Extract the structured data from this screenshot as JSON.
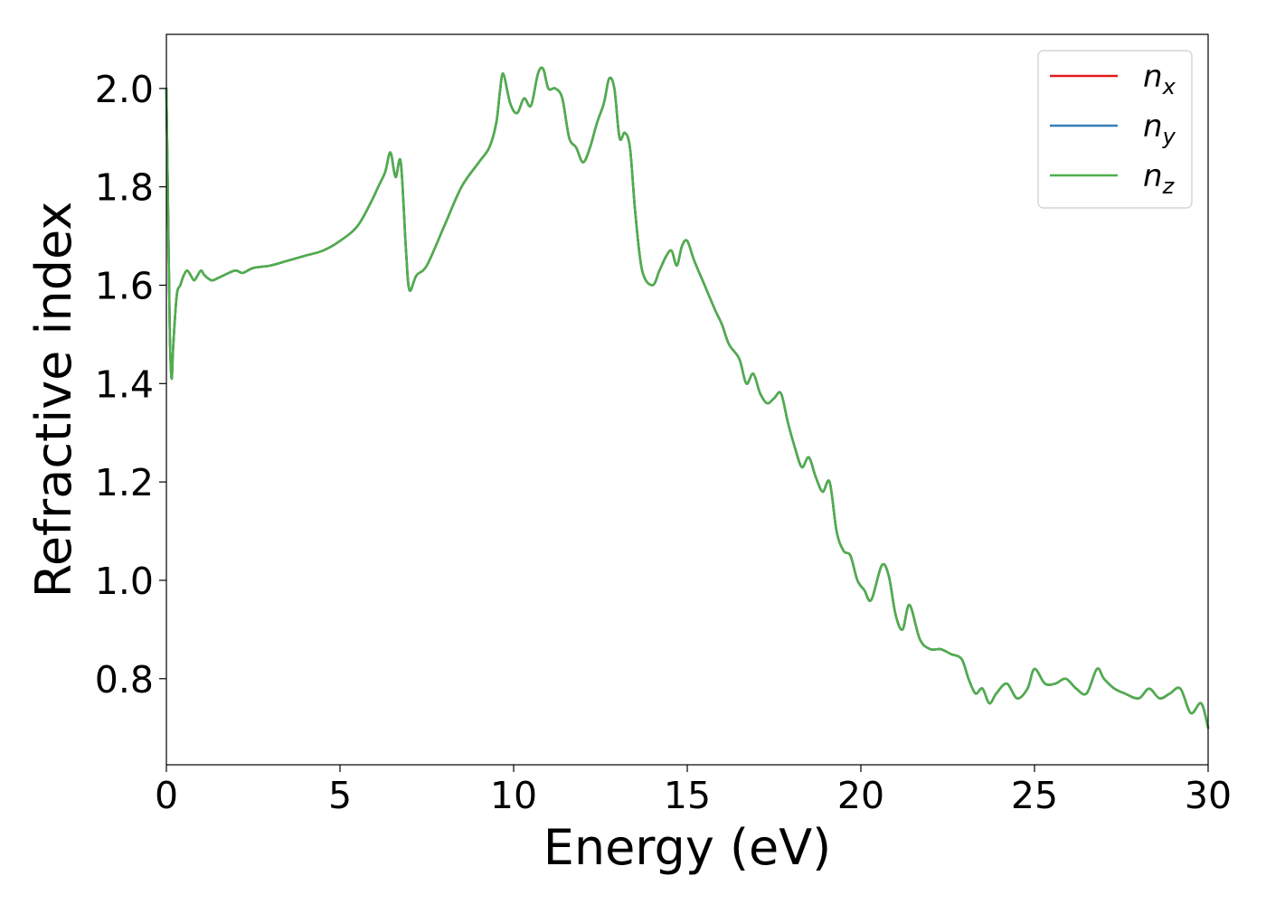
{
  "chart_data": {
    "type": "line",
    "title": "",
    "xlabel": "Energy (eV)",
    "ylabel": "Refractive index",
    "xlim": [
      0,
      30
    ],
    "ylim": [
      0.625,
      2.11
    ],
    "xticks": [
      0,
      5,
      10,
      15,
      20,
      25,
      30
    ],
    "xtick_labels": [
      "0",
      "5",
      "10",
      "15",
      "20",
      "25",
      "30"
    ],
    "yticks": [
      0.8,
      1.0,
      1.2,
      1.4,
      1.6,
      1.8,
      2.0
    ],
    "ytick_labels": [
      "0.8",
      "1.0",
      "1.2",
      "1.4",
      "1.6",
      "1.8",
      "2.0"
    ],
    "grid": false,
    "legend_position": "top-right",
    "colors": {
      "n_x": "#e41a1c",
      "n_y": "#377eb8",
      "n_z": "#4daf4a"
    },
    "legend": [
      {
        "base": "n",
        "sub": "x",
        "color": "#e41a1c"
      },
      {
        "base": "n",
        "sub": "y",
        "color": "#377eb8"
      },
      {
        "base": "n",
        "sub": "z",
        "color": "#4daf4a"
      }
    ],
    "series": [
      {
        "legend_index": 0,
        "color": "#e41a1c",
        "x": [
          0,
          0.05,
          0.1,
          0.15,
          0.2,
          0.3,
          0.4,
          0.5,
          0.6,
          0.7,
          0.8,
          0.9,
          1.0,
          1.1,
          1.3,
          1.5,
          1.8,
          2.0,
          2.2,
          2.5,
          3.0,
          3.5,
          4.0,
          4.5,
          5.0,
          5.5,
          5.9,
          6.1,
          6.3,
          6.45,
          6.6,
          6.75,
          6.9,
          7.0,
          7.2,
          7.5,
          8.0,
          8.5,
          9.0,
          9.3,
          9.5,
          9.6,
          9.7,
          9.9,
          10.1,
          10.3,
          10.5,
          10.7,
          10.85,
          11.0,
          11.2,
          11.4,
          11.6,
          11.8,
          12.0,
          12.2,
          12.4,
          12.6,
          12.75,
          12.9,
          13.05,
          13.2,
          13.35,
          13.5,
          13.7,
          14.0,
          14.2,
          14.4,
          14.55,
          14.7,
          14.85,
          15.0,
          15.2,
          15.5,
          15.8,
          16.0,
          16.2,
          16.5,
          16.7,
          16.9,
          17.1,
          17.3,
          17.5,
          17.7,
          17.9,
          18.1,
          18.3,
          18.5,
          18.7,
          18.9,
          19.1,
          19.3,
          19.5,
          19.7,
          19.9,
          20.1,
          20.3,
          20.6,
          20.8,
          21.0,
          21.2,
          21.4,
          21.7,
          22.0,
          22.3,
          22.6,
          22.9,
          23.1,
          23.3,
          23.5,
          23.7,
          23.9,
          24.2,
          24.5,
          24.8,
          25.0,
          25.3,
          25.6,
          25.9,
          26.2,
          26.5,
          26.8,
          27.0,
          27.3,
          27.6,
          28.0,
          28.3,
          28.6,
          28.9,
          29.2,
          29.5,
          29.8,
          30.0
        ],
        "y": [
          2.0,
          1.75,
          1.5,
          1.41,
          1.48,
          1.58,
          1.6,
          1.62,
          1.63,
          1.62,
          1.61,
          1.62,
          1.63,
          1.62,
          1.61,
          1.615,
          1.625,
          1.63,
          1.625,
          1.635,
          1.64,
          1.65,
          1.66,
          1.67,
          1.69,
          1.72,
          1.77,
          1.8,
          1.83,
          1.87,
          1.82,
          1.85,
          1.67,
          1.59,
          1.62,
          1.64,
          1.72,
          1.8,
          1.85,
          1.88,
          1.93,
          1.99,
          2.03,
          1.97,
          1.95,
          1.98,
          1.965,
          2.03,
          2.04,
          2.0,
          2.0,
          1.98,
          1.9,
          1.88,
          1.85,
          1.88,
          1.93,
          1.97,
          2.02,
          2.0,
          1.9,
          1.91,
          1.88,
          1.75,
          1.63,
          1.6,
          1.63,
          1.66,
          1.67,
          1.64,
          1.68,
          1.69,
          1.65,
          1.6,
          1.55,
          1.52,
          1.48,
          1.45,
          1.4,
          1.42,
          1.38,
          1.36,
          1.37,
          1.38,
          1.32,
          1.27,
          1.23,
          1.25,
          1.21,
          1.18,
          1.2,
          1.1,
          1.06,
          1.05,
          1.0,
          0.98,
          0.96,
          1.03,
          1.01,
          0.93,
          0.9,
          0.95,
          0.88,
          0.86,
          0.86,
          0.85,
          0.84,
          0.8,
          0.77,
          0.78,
          0.75,
          0.77,
          0.79,
          0.76,
          0.78,
          0.82,
          0.79,
          0.79,
          0.8,
          0.78,
          0.77,
          0.82,
          0.8,
          0.78,
          0.77,
          0.76,
          0.78,
          0.76,
          0.77,
          0.78,
          0.73,
          0.75,
          0.7
        ]
      },
      {
        "legend_index": 1,
        "color": "#377eb8",
        "x": [
          0,
          0.05,
          0.1,
          0.15,
          0.2,
          0.3,
          0.4,
          0.5,
          0.6,
          0.7,
          0.8,
          0.9,
          1.0,
          1.1,
          1.3,
          1.5,
          1.8,
          2.0,
          2.2,
          2.5,
          3.0,
          3.5,
          4.0,
          4.5,
          5.0,
          5.5,
          5.9,
          6.1,
          6.3,
          6.45,
          6.6,
          6.75,
          6.9,
          7.0,
          7.2,
          7.5,
          8.0,
          8.5,
          9.0,
          9.3,
          9.5,
          9.6,
          9.7,
          9.9,
          10.1,
          10.3,
          10.5,
          10.7,
          10.85,
          11.0,
          11.2,
          11.4,
          11.6,
          11.8,
          12.0,
          12.2,
          12.4,
          12.6,
          12.75,
          12.9,
          13.05,
          13.2,
          13.35,
          13.5,
          13.7,
          14.0,
          14.2,
          14.4,
          14.55,
          14.7,
          14.85,
          15.0,
          15.2,
          15.5,
          15.8,
          16.0,
          16.2,
          16.5,
          16.7,
          16.9,
          17.1,
          17.3,
          17.5,
          17.7,
          17.9,
          18.1,
          18.3,
          18.5,
          18.7,
          18.9,
          19.1,
          19.3,
          19.5,
          19.7,
          19.9,
          20.1,
          20.3,
          20.6,
          20.8,
          21.0,
          21.2,
          21.4,
          21.7,
          22.0,
          22.3,
          22.6,
          22.9,
          23.1,
          23.3,
          23.5,
          23.7,
          23.9,
          24.2,
          24.5,
          24.8,
          25.0,
          25.3,
          25.6,
          25.9,
          26.2,
          26.5,
          26.8,
          27.0,
          27.3,
          27.6,
          28.0,
          28.3,
          28.6,
          28.9,
          29.2,
          29.5,
          29.8,
          30.0
        ],
        "y": [
          2.0,
          1.75,
          1.5,
          1.41,
          1.48,
          1.58,
          1.6,
          1.62,
          1.63,
          1.62,
          1.61,
          1.62,
          1.63,
          1.62,
          1.61,
          1.615,
          1.625,
          1.63,
          1.625,
          1.635,
          1.64,
          1.65,
          1.66,
          1.67,
          1.69,
          1.72,
          1.77,
          1.8,
          1.83,
          1.87,
          1.82,
          1.85,
          1.67,
          1.59,
          1.62,
          1.64,
          1.72,
          1.8,
          1.85,
          1.88,
          1.93,
          1.99,
          2.03,
          1.97,
          1.95,
          1.98,
          1.965,
          2.03,
          2.04,
          2.0,
          2.0,
          1.98,
          1.9,
          1.88,
          1.85,
          1.88,
          1.93,
          1.97,
          2.02,
          2.0,
          1.9,
          1.91,
          1.88,
          1.75,
          1.63,
          1.6,
          1.63,
          1.66,
          1.67,
          1.64,
          1.68,
          1.69,
          1.65,
          1.6,
          1.55,
          1.52,
          1.48,
          1.45,
          1.4,
          1.42,
          1.38,
          1.36,
          1.37,
          1.38,
          1.32,
          1.27,
          1.23,
          1.25,
          1.21,
          1.18,
          1.2,
          1.1,
          1.06,
          1.05,
          1.0,
          0.98,
          0.96,
          1.03,
          1.01,
          0.93,
          0.9,
          0.95,
          0.88,
          0.86,
          0.86,
          0.85,
          0.84,
          0.8,
          0.77,
          0.78,
          0.75,
          0.77,
          0.79,
          0.76,
          0.78,
          0.82,
          0.79,
          0.79,
          0.8,
          0.78,
          0.77,
          0.82,
          0.8,
          0.78,
          0.77,
          0.76,
          0.78,
          0.76,
          0.77,
          0.78,
          0.73,
          0.75,
          0.7
        ]
      },
      {
        "legend_index": 2,
        "color": "#4daf4a",
        "x": [
          0,
          0.05,
          0.1,
          0.15,
          0.2,
          0.3,
          0.4,
          0.5,
          0.6,
          0.7,
          0.8,
          0.9,
          1.0,
          1.1,
          1.3,
          1.5,
          1.8,
          2.0,
          2.2,
          2.5,
          3.0,
          3.5,
          4.0,
          4.5,
          5.0,
          5.5,
          5.9,
          6.1,
          6.3,
          6.45,
          6.6,
          6.75,
          6.9,
          7.0,
          7.2,
          7.5,
          8.0,
          8.5,
          9.0,
          9.3,
          9.5,
          9.6,
          9.7,
          9.9,
          10.1,
          10.3,
          10.5,
          10.7,
          10.85,
          11.0,
          11.2,
          11.4,
          11.6,
          11.8,
          12.0,
          12.2,
          12.4,
          12.6,
          12.75,
          12.9,
          13.05,
          13.2,
          13.35,
          13.5,
          13.7,
          14.0,
          14.2,
          14.4,
          14.55,
          14.7,
          14.85,
          15.0,
          15.2,
          15.5,
          15.8,
          16.0,
          16.2,
          16.5,
          16.7,
          16.9,
          17.1,
          17.3,
          17.5,
          17.7,
          17.9,
          18.1,
          18.3,
          18.5,
          18.7,
          18.9,
          19.1,
          19.3,
          19.5,
          19.7,
          19.9,
          20.1,
          20.3,
          20.6,
          20.8,
          21.0,
          21.2,
          21.4,
          21.7,
          22.0,
          22.3,
          22.6,
          22.9,
          23.1,
          23.3,
          23.5,
          23.7,
          23.9,
          24.2,
          24.5,
          24.8,
          25.0,
          25.3,
          25.6,
          25.9,
          26.2,
          26.5,
          26.8,
          27.0,
          27.3,
          27.6,
          28.0,
          28.3,
          28.6,
          28.9,
          29.2,
          29.5,
          29.8,
          30.0
        ],
        "y": [
          2.0,
          1.75,
          1.5,
          1.41,
          1.48,
          1.58,
          1.6,
          1.62,
          1.63,
          1.62,
          1.61,
          1.62,
          1.63,
          1.62,
          1.61,
          1.615,
          1.625,
          1.63,
          1.625,
          1.635,
          1.64,
          1.65,
          1.66,
          1.67,
          1.69,
          1.72,
          1.77,
          1.8,
          1.83,
          1.87,
          1.82,
          1.85,
          1.67,
          1.59,
          1.62,
          1.64,
          1.72,
          1.8,
          1.85,
          1.88,
          1.93,
          1.99,
          2.03,
          1.97,
          1.95,
          1.98,
          1.965,
          2.03,
          2.04,
          2.0,
          2.0,
          1.98,
          1.9,
          1.88,
          1.85,
          1.88,
          1.93,
          1.97,
          2.02,
          2.0,
          1.9,
          1.91,
          1.88,
          1.75,
          1.63,
          1.6,
          1.63,
          1.66,
          1.67,
          1.64,
          1.68,
          1.69,
          1.65,
          1.6,
          1.55,
          1.52,
          1.48,
          1.45,
          1.4,
          1.42,
          1.38,
          1.36,
          1.37,
          1.38,
          1.32,
          1.27,
          1.23,
          1.25,
          1.21,
          1.18,
          1.2,
          1.1,
          1.06,
          1.05,
          1.0,
          0.98,
          0.96,
          1.03,
          1.01,
          0.93,
          0.9,
          0.95,
          0.88,
          0.86,
          0.86,
          0.85,
          0.84,
          0.8,
          0.77,
          0.78,
          0.75,
          0.77,
          0.79,
          0.76,
          0.78,
          0.82,
          0.79,
          0.79,
          0.8,
          0.78,
          0.77,
          0.82,
          0.8,
          0.78,
          0.77,
          0.76,
          0.78,
          0.76,
          0.77,
          0.78,
          0.73,
          0.75,
          0.7
        ]
      }
    ]
  }
}
